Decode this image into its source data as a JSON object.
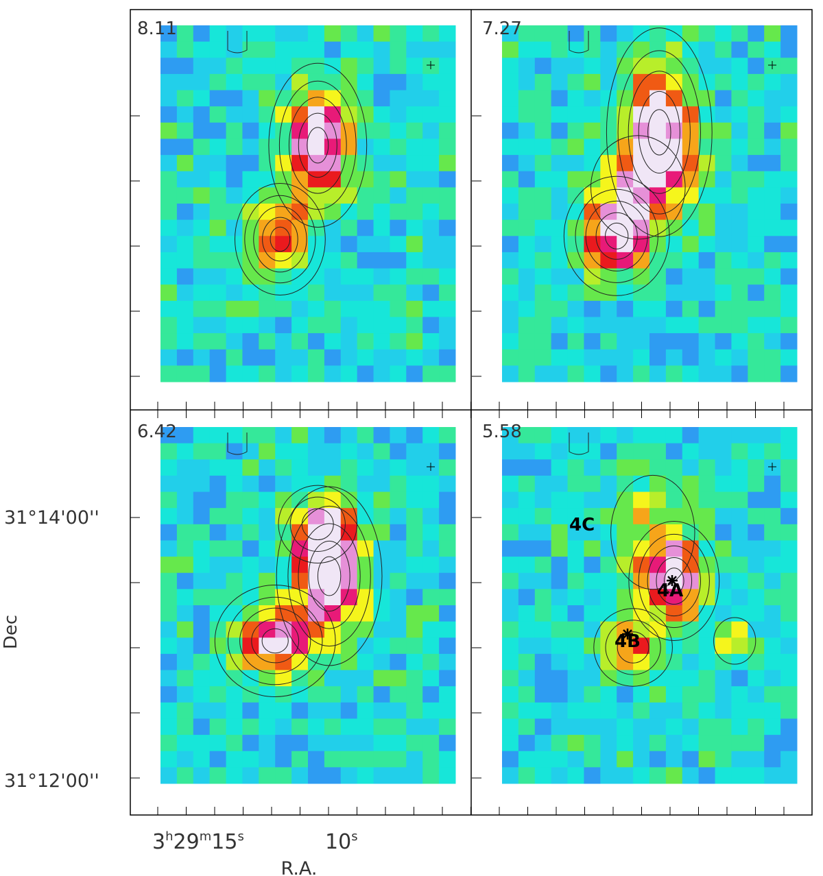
{
  "figure": {
    "panels": [
      {
        "velocity": "8.11",
        "sources": []
      },
      {
        "velocity": "7.27",
        "sources": []
      },
      {
        "velocity": "6.42",
        "sources": []
      },
      {
        "velocity": "5.58",
        "sources": [
          "4C",
          "4A",
          "4B"
        ]
      }
    ],
    "axes": {
      "xlabel": "R.A.",
      "ylabel": "Dec",
      "dec_ticks": [
        "31°14'00''",
        "31°12'00''"
      ],
      "ra_tick_minor_1": "15",
      "ra_tick_minor_2": "10"
    },
    "ra_label": {
      "h": "3",
      "m": "29",
      "s": "15",
      "sec2": "10"
    }
  },
  "colors": {
    "scale": [
      "#0a2ad8",
      "#1a6cf0",
      "#2e9cf2",
      "#22cfea",
      "#17e6d9",
      "#35e89a",
      "#66e84c",
      "#b8ee2a",
      "#f5f51c",
      "#f6a51a",
      "#f05a14",
      "#ea1a1e",
      "#e81a78",
      "#e690d8",
      "#f0e6f6"
    ],
    "contour": "#222222",
    "frame": "#000000"
  }
}
